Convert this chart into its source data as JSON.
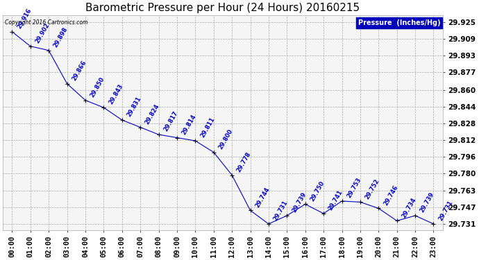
{
  "title": "Barometric Pressure per Hour (24 Hours) 20160215",
  "copyright": "Copyright 2016 Cartronics.com",
  "legend_label": "Pressure  (Inches/Hg)",
  "hours": [
    0,
    1,
    2,
    3,
    4,
    5,
    6,
    7,
    8,
    9,
    10,
    11,
    12,
    13,
    14,
    15,
    16,
    17,
    18,
    19,
    20,
    21,
    22,
    23
  ],
  "x_labels": [
    "00:00",
    "01:00",
    "02:00",
    "03:00",
    "04:00",
    "05:00",
    "06:00",
    "07:00",
    "08:00",
    "09:00",
    "10:00",
    "11:00",
    "12:00",
    "13:00",
    "14:00",
    "15:00",
    "16:00",
    "17:00",
    "18:00",
    "19:00",
    "20:00",
    "21:00",
    "22:00",
    "23:00"
  ],
  "values": [
    29.916,
    29.902,
    29.898,
    29.866,
    29.85,
    29.843,
    29.831,
    29.824,
    29.817,
    29.814,
    29.811,
    29.8,
    29.778,
    29.744,
    29.731,
    29.739,
    29.75,
    29.741,
    29.753,
    29.752,
    29.746,
    29.734,
    29.739,
    29.731
  ],
  "value_labels": [
    "29.916",
    "29.902",
    "29.898",
    "29.866",
    "29.850",
    "29.843",
    "29.831",
    "29.824",
    "29.817",
    "29.814",
    "29.811",
    "29.800",
    "29.778",
    "29.744",
    "29.731",
    "29.739",
    "29.750",
    "29.741",
    "29.753",
    "29.752",
    "29.746",
    "29.734",
    "29.739",
    "29.731"
  ],
  "ylim_min": 29.725,
  "ylim_max": 29.932,
  "yticks": [
    29.925,
    29.909,
    29.893,
    29.877,
    29.86,
    29.844,
    29.828,
    29.812,
    29.796,
    29.78,
    29.763,
    29.747,
    29.731
  ],
  "line_color": "#0000cc",
  "marker_color": "#000000",
  "bg_color": "#ffffff",
  "plot_bg_color": "#f5f5f5",
  "grid_color": "#aaaaaa",
  "title_fontsize": 11,
  "label_fontsize": 6,
  "tick_fontsize": 7.5,
  "legend_bg": "#0000bb",
  "legend_text_color": "#ffffff"
}
